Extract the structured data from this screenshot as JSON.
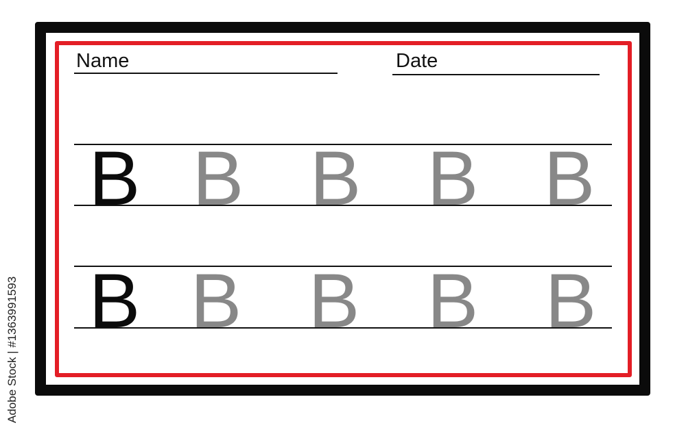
{
  "worksheet": {
    "name_label": "Name",
    "date_label": "Date",
    "rows": [
      {
        "letters": [
          "B",
          "B",
          "B",
          "B",
          "B"
        ],
        "styles": [
          "model",
          "trace",
          "trace",
          "trace",
          "trace"
        ]
      },
      {
        "letters": [
          "B",
          "B",
          "B",
          "B",
          "B"
        ],
        "styles": [
          "model",
          "trace",
          "trace",
          "trace",
          "trace"
        ]
      }
    ]
  },
  "colors": {
    "outer_border": "#0b0b0b",
    "inner_border": "#e31e26",
    "trace_letter": "#888888",
    "model_letter": "#0b0b0b"
  },
  "watermark": "Adobe Stock | #1363991593"
}
